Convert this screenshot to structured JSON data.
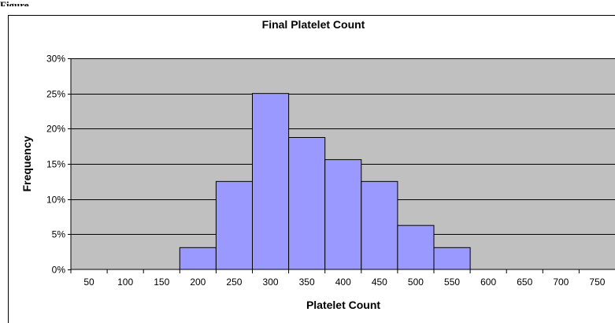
{
  "page": {
    "caption": "Figure"
  },
  "chart_data": {
    "type": "bar",
    "title": "Final Platelet Count",
    "xlabel": "Platelet Count",
    "ylabel": "Frequency",
    "categories": [
      "50",
      "100",
      "150",
      "200",
      "250",
      "300",
      "350",
      "400",
      "450",
      "500",
      "550",
      "600",
      "650",
      "700",
      "750"
    ],
    "values": [
      0,
      0,
      0,
      3.1,
      12.5,
      25,
      18.75,
      15.6,
      12.5,
      6.25,
      3.1,
      0,
      0,
      0,
      0
    ],
    "ylim": [
      0,
      30
    ],
    "yticks": [
      0,
      5,
      10,
      15,
      20,
      25,
      30
    ],
    "ytick_labels": [
      "0%",
      "5%",
      "10%",
      "15%",
      "20%",
      "25%",
      "30%"
    ],
    "grid": true,
    "legend": "none",
    "colors": {
      "plot_background": "#c0c0c0",
      "bar_fill": "#9999ff",
      "bar_stroke": "#000000",
      "gridline": "#000000"
    }
  }
}
